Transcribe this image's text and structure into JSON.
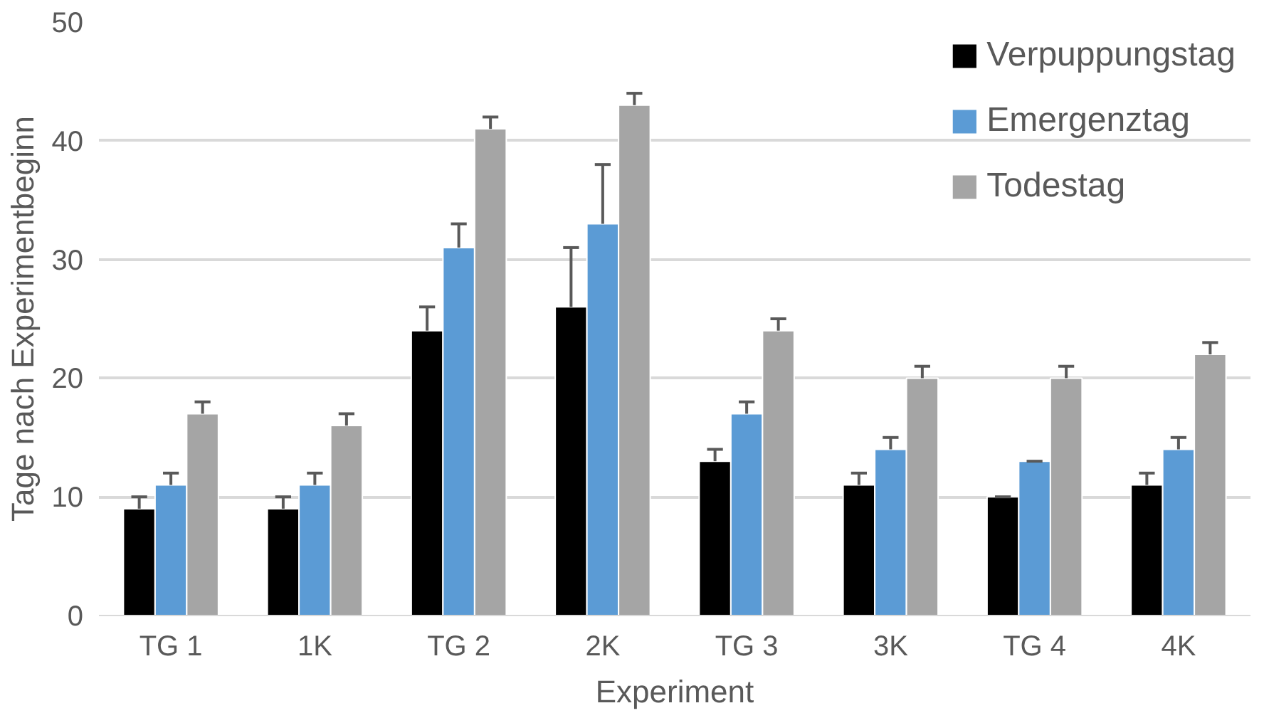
{
  "chart_data": {
    "type": "bar",
    "xlabel": "Experiment",
    "ylabel": "Tage nach Experimentbeginn",
    "categories": [
      "TG 1",
      "1K",
      "TG 2",
      "2K",
      "TG 3",
      "3K",
      "TG 4",
      "4K"
    ],
    "series": [
      {
        "name": "Verpuppungstag",
        "color": "#000000",
        "values": [
          9,
          9,
          24,
          26,
          13,
          11,
          10,
          11
        ],
        "errors": [
          [
            9,
            10
          ],
          [
            9,
            10
          ],
          [
            24,
            26
          ],
          [
            26,
            31
          ],
          [
            13,
            14
          ],
          [
            11,
            12
          ],
          [
            10,
            10
          ],
          [
            11,
            12
          ]
        ]
      },
      {
        "name": "Emergenztag",
        "color": "#5b9bd5",
        "values": [
          11,
          11,
          31,
          33,
          17,
          14,
          13,
          14
        ],
        "errors": [
          [
            11,
            12
          ],
          [
            11,
            12
          ],
          [
            31,
            33
          ],
          [
            33,
            38
          ],
          [
            17,
            18
          ],
          [
            14,
            15
          ],
          [
            13,
            13
          ],
          [
            14,
            15
          ]
        ]
      },
      {
        "name": "Todestag",
        "color": "#a5a5a5",
        "values": [
          17,
          16,
          41,
          43,
          24,
          20,
          20,
          22
        ],
        "errors": [
          [
            17,
            18
          ],
          [
            16,
            17
          ],
          [
            41,
            42
          ],
          [
            43,
            44
          ],
          [
            24,
            25
          ],
          [
            20,
            21
          ],
          [
            20,
            21
          ],
          [
            22,
            23
          ]
        ]
      }
    ],
    "ylim": [
      0,
      50
    ],
    "yticks": [
      0,
      10,
      20,
      30,
      40,
      50
    ],
    "grid": "y",
    "legend": "top right"
  }
}
